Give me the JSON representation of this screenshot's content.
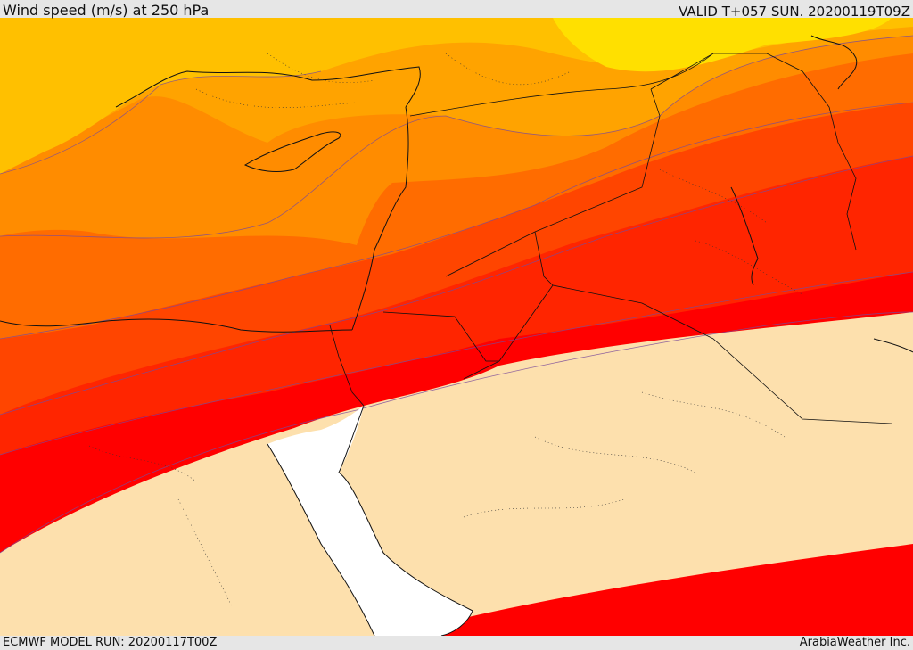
{
  "header": {
    "title": "Wind speed (m/s) at 250 hPa",
    "valid": "VALID T+057 SUN. 20200119T09Z"
  },
  "footer": {
    "model_run": "ECMWF MODEL RUN: 20200117T00Z",
    "credit": "ArabiaWeather Inc."
  },
  "map": {
    "variable": "wind speed",
    "level": "250 hPa",
    "land_color": "#fde0ad",
    "sea_color": "#ffffff",
    "bands": [
      {
        "name": "band-yellow",
        "color": "#ffe000"
      },
      {
        "name": "band-gold",
        "color": "#ffc000"
      },
      {
        "name": "band-light-orange",
        "color": "#ffa300"
      },
      {
        "name": "band-orange",
        "color": "#ff8c00"
      },
      {
        "name": "band-dark-orange",
        "color": "#ff6c00"
      },
      {
        "name": "band-red-orange",
        "color": "#ff4500"
      },
      {
        "name": "band-orange-red",
        "color": "#ff2500"
      },
      {
        "name": "band-red",
        "color": "#ff0000"
      }
    ]
  }
}
